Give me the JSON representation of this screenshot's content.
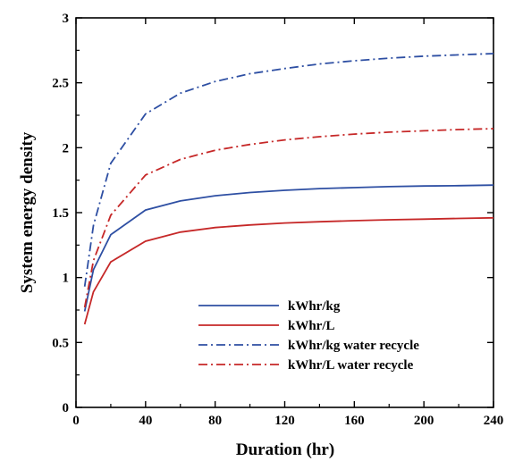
{
  "chart_data": {
    "type": "line",
    "xlabel": "Duration (hr)",
    "ylabel": "System energy density",
    "xlim": [
      0,
      240
    ],
    "ylim": [
      0,
      3
    ],
    "xticks": [
      0,
      40,
      80,
      120,
      160,
      200,
      240
    ],
    "yticks": [
      0,
      0.5,
      1,
      1.5,
      2,
      2.5,
      3
    ],
    "xtick_labels": [
      "0",
      "40",
      "80",
      "120",
      "160",
      "200",
      "240"
    ],
    "ytick_labels": [
      "0",
      "0.5",
      "1",
      "1.5",
      "2",
      "2.5",
      "3"
    ],
    "grid": false,
    "legend_position": "bottom-right",
    "series": [
      {
        "name": "kWhr/kg",
        "color": "#2e4fa3",
        "style": "solid",
        "x": [
          5,
          10,
          20,
          40,
          60,
          80,
          100,
          120,
          140,
          160,
          180,
          200,
          220,
          240
        ],
        "y": [
          0.74,
          1.06,
          1.33,
          1.52,
          1.59,
          1.63,
          1.655,
          1.672,
          1.685,
          1.693,
          1.7,
          1.705,
          1.708,
          1.712
        ]
      },
      {
        "name": "kWhr/L",
        "color": "#c62828",
        "style": "solid",
        "x": [
          5,
          10,
          20,
          40,
          60,
          80,
          100,
          120,
          140,
          160,
          180,
          200,
          220,
          240
        ],
        "y": [
          0.64,
          0.89,
          1.12,
          1.28,
          1.35,
          1.385,
          1.405,
          1.42,
          1.43,
          1.438,
          1.445,
          1.45,
          1.455,
          1.46
        ]
      },
      {
        "name": "kWhr/kg water recycle",
        "color": "#2e4fa3",
        "style": "dashdot",
        "x": [
          5,
          10,
          20,
          40,
          60,
          80,
          100,
          120,
          140,
          160,
          180,
          200,
          220,
          240
        ],
        "y": [
          0.93,
          1.4,
          1.88,
          2.26,
          2.42,
          2.51,
          2.57,
          2.61,
          2.645,
          2.67,
          2.69,
          2.705,
          2.715,
          2.725
        ]
      },
      {
        "name": "kWhr/L water recycle",
        "color": "#c62828",
        "style": "dashdot",
        "x": [
          5,
          10,
          20,
          40,
          60,
          80,
          100,
          120,
          140,
          160,
          180,
          200,
          220,
          240
        ],
        "y": [
          0.77,
          1.13,
          1.48,
          1.79,
          1.91,
          1.98,
          2.025,
          2.06,
          2.085,
          2.105,
          2.12,
          2.13,
          2.14,
          2.147
        ]
      }
    ]
  }
}
